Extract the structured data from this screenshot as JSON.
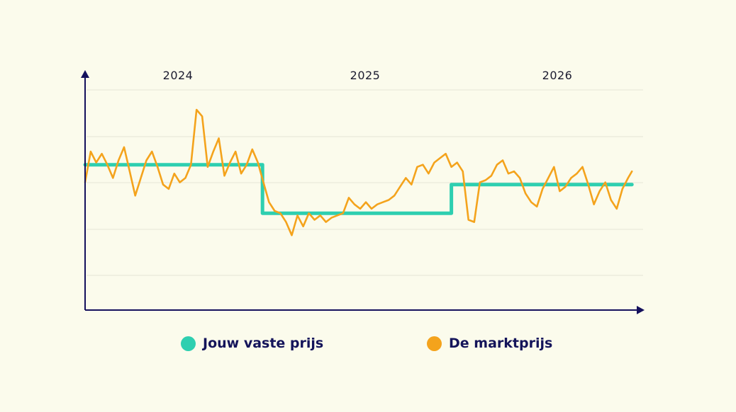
{
  "colors": {
    "background": "#FBFBEC",
    "axis": "#14105C",
    "grid": "#E4E4D6",
    "fixed": "#2ECFB0",
    "market": "#F4A31C",
    "legend_text": "#14145A"
  },
  "chart_data": {
    "type": "line",
    "title": "",
    "xlabel": "",
    "ylabel": "",
    "y_ticks_shown": false,
    "grid": true,
    "legend_position": "bottom",
    "ylim": [
      0,
      100
    ],
    "xlim": [
      2024,
      2027
    ],
    "x_period_labels": [
      "2024",
      "2025",
      "2026"
    ],
    "series": [
      {
        "name": "Jouw vaste prijs",
        "color": "#2ECFB0",
        "style": "step",
        "x": [
          2024.0,
          2024.955,
          2024.955,
          2025.95,
          2025.95,
          2026.9
        ],
        "values": [
          66,
          66,
          44,
          44,
          57,
          57
        ]
      },
      {
        "name": "De marktprijs",
        "color": "#F4A31C",
        "style": "line",
        "x": [
          2024.0,
          2024.03,
          2024.06,
          2024.09,
          2024.12,
          2024.15,
          2024.18,
          2024.21,
          2024.24,
          2024.27,
          2024.3,
          2024.33,
          2024.36,
          2024.39,
          2024.42,
          2024.45,
          2024.48,
          2024.51,
          2024.54,
          2024.57,
          2024.6,
          2024.63,
          2024.66,
          2024.69,
          2024.72,
          2024.75,
          2024.78,
          2024.81,
          2024.84,
          2024.87,
          2024.9,
          2024.93,
          2024.96,
          2024.99,
          2025.02,
          2025.05,
          2025.08,
          2025.11,
          2025.14,
          2025.17,
          2025.2,
          2025.23,
          2025.26,
          2025.29,
          2025.32,
          2025.35,
          2025.38,
          2025.41,
          2025.44,
          2025.47,
          2025.5,
          2025.53,
          2025.56,
          2025.59,
          2025.62,
          2025.65,
          2025.68,
          2025.71,
          2025.74,
          2025.77,
          2025.8,
          2025.83,
          2025.86,
          2025.89,
          2025.92,
          2025.95,
          2025.98,
          2026.01,
          2026.04,
          2026.07,
          2026.1,
          2026.13,
          2026.16,
          2026.19,
          2026.22,
          2026.25,
          2026.28,
          2026.31,
          2026.34,
          2026.37,
          2026.4,
          2026.43,
          2026.46,
          2026.49,
          2026.52,
          2026.55,
          2026.58,
          2026.61,
          2026.64,
          2026.67,
          2026.7,
          2026.73,
          2026.76,
          2026.79,
          2026.82,
          2026.85,
          2026.88,
          2026.9
        ],
        "values": [
          58,
          72,
          67,
          71,
          66,
          60,
          68,
          74,
          63,
          52,
          60,
          68,
          72,
          65,
          57,
          55,
          62,
          58,
          60,
          66,
          91,
          88,
          65,
          72,
          78,
          61,
          67,
          72,
          62,
          66,
          73,
          67,
          58,
          49,
          45,
          44,
          40,
          34,
          43,
          38,
          44,
          41,
          43,
          40,
          42,
          43,
          44,
          51,
          48,
          46,
          49,
          46,
          48,
          49,
          50,
          52,
          56,
          60,
          57,
          65,
          66,
          62,
          67,
          69,
          71,
          65,
          67,
          63,
          41,
          40,
          58,
          59,
          61,
          66,
          68,
          62,
          63,
          60,
          53,
          49,
          47,
          55,
          60,
          65,
          54,
          56,
          60,
          62,
          65,
          57,
          48,
          54,
          58,
          50,
          46,
          55,
          60,
          63
        ]
      }
    ]
  },
  "legend": {
    "fixed_label": "Jouw vaste prijs",
    "market_label": "De marktprijs"
  }
}
